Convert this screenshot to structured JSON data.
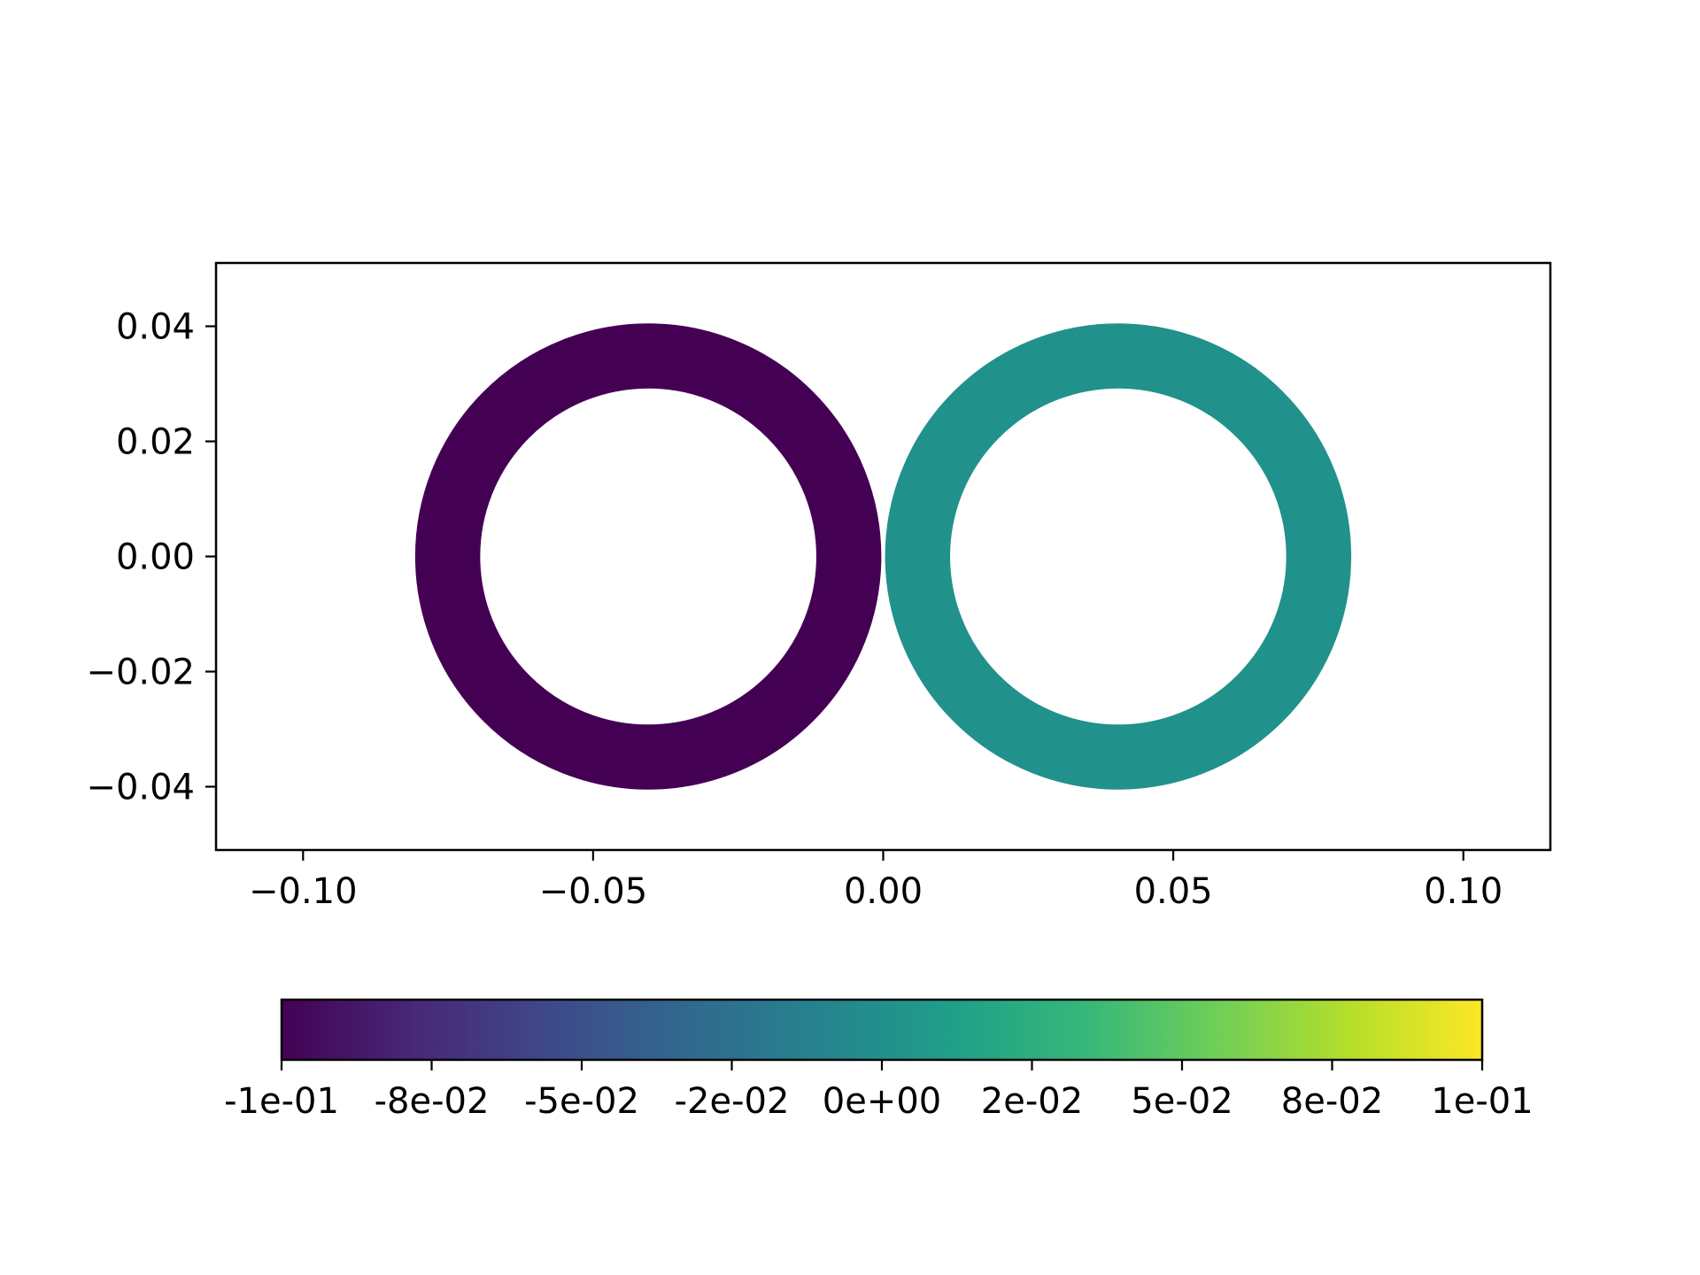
{
  "chart_data": {
    "type": "scatter",
    "xlim": [
      -0.115,
      0.115
    ],
    "ylim": [
      -0.051,
      0.051
    ],
    "x_ticks": [
      -0.1,
      -0.05,
      0.0,
      0.05,
      0.1
    ],
    "x_tick_labels": [
      "−0.10",
      "−0.05",
      "0.00",
      "0.05",
      "0.10"
    ],
    "y_ticks": [
      0.04,
      0.02,
      0.0,
      -0.02,
      -0.04
    ],
    "y_tick_labels": [
      "0.04",
      "0.02",
      "0.00",
      "−0.02",
      "−0.04"
    ],
    "grid": false,
    "series": [
      {
        "center": [
          -0.0405,
          0.0
        ],
        "inner_radius": 0.0292,
        "outer_radius": 0.0405,
        "value": -0.1,
        "color": "#440154"
      },
      {
        "center": [
          0.0405,
          0.0
        ],
        "inner_radius": 0.0292,
        "outer_radius": 0.0405,
        "value": 0.0,
        "color": "#21918c"
      }
    ],
    "colorbar": {
      "orientation": "horizontal",
      "placement": "bottom",
      "colormap": "viridis",
      "range": [
        -0.1,
        0.1
      ],
      "ticks": [
        -0.1,
        -0.075,
        -0.05,
        -0.025,
        0.0,
        0.025,
        0.05,
        0.075,
        0.1
      ],
      "tick_labels": [
        "-1e-01",
        "-8e-02",
        "-5e-02",
        "-2e-02",
        "0e+00",
        "2e-02",
        "5e-02",
        "8e-02",
        "1e-01"
      ],
      "stops": [
        "#440154",
        "#482878",
        "#3e4989",
        "#31688e",
        "#26828e",
        "#1f9e89",
        "#35b779",
        "#6ece58",
        "#b5de2b",
        "#fde725"
      ]
    }
  }
}
